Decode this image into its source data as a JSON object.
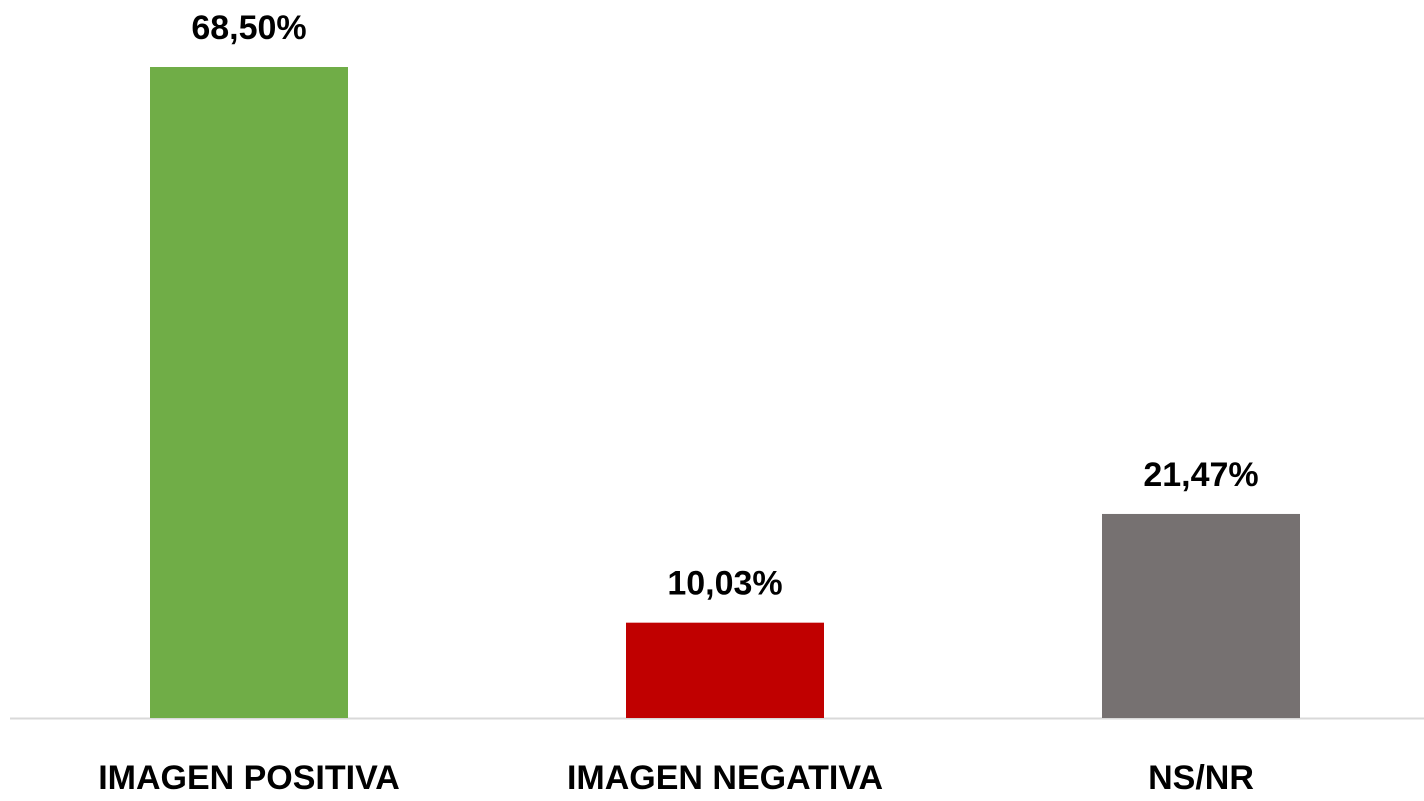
{
  "chart_data": {
    "type": "bar",
    "categories": [
      "IMAGEN POSITIVA",
      "IMAGEN NEGATIVA",
      "NS/NR"
    ],
    "values": [
      68.5,
      10.03,
      21.47
    ],
    "value_labels": [
      "68,50%",
      "10,03%",
      "21,47%"
    ],
    "colors": [
      "#70ad47",
      "#c00000",
      "#767171"
    ]
  }
}
